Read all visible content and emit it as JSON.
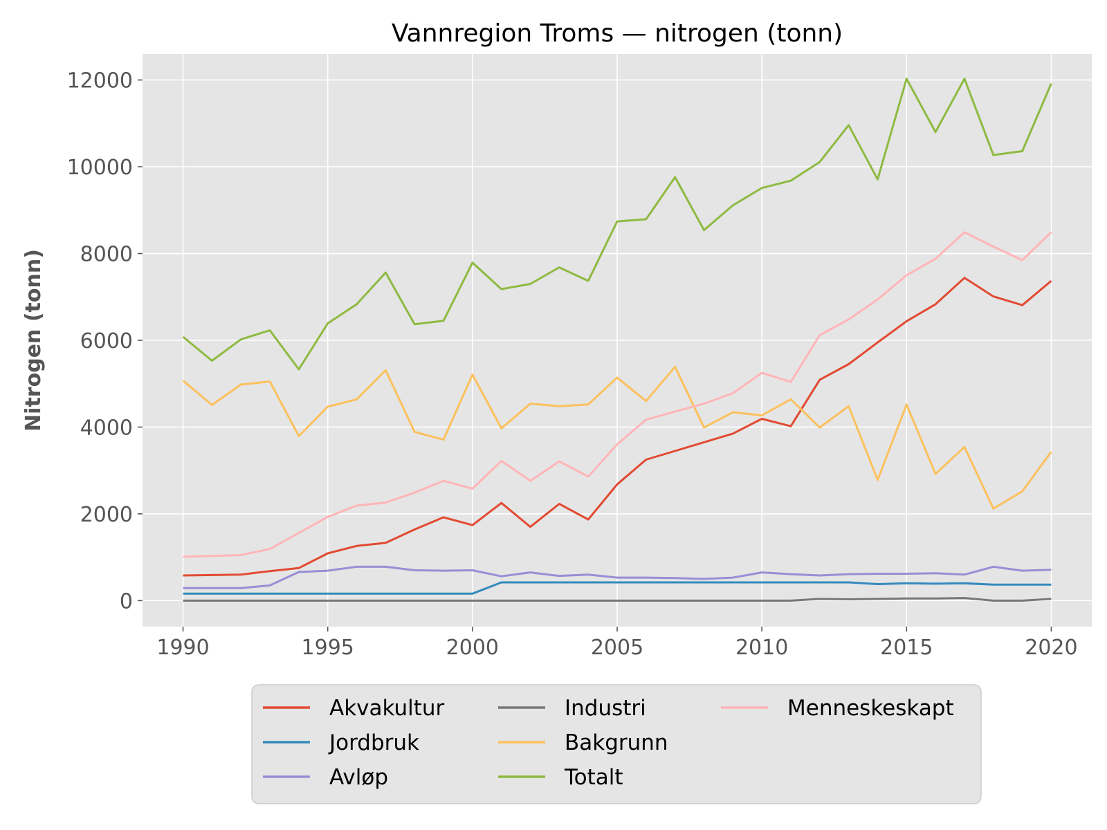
{
  "chart_data": {
    "type": "line",
    "title": "Vannregion Troms — nitrogen (tonn)",
    "xlabel": "",
    "ylabel": "Nitrogen (tonn)",
    "xlim": [
      1988.6,
      2021.4
    ],
    "ylim": [
      -600,
      12600
    ],
    "xticks": [
      1990,
      1995,
      2000,
      2005,
      2010,
      2015,
      2020
    ],
    "yticks": [
      0,
      2000,
      4000,
      6000,
      8000,
      10000,
      12000
    ],
    "grid": true,
    "legend_position": "below",
    "x": [
      1990,
      1991,
      1992,
      1993,
      1994,
      1995,
      1996,
      1997,
      1998,
      1999,
      2000,
      2001,
      2002,
      2003,
      2004,
      2005,
      2006,
      2007,
      2008,
      2009,
      2010,
      2011,
      2012,
      2013,
      2014,
      2015,
      2016,
      2017,
      2018,
      2019,
      2020
    ],
    "series": [
      {
        "name": "Akvakultur",
        "color": "#E24A33",
        "values": [
          580,
          590,
          600,
          680,
          750,
          1090,
          1260,
          1330,
          1640,
          1920,
          1740,
          2250,
          1700,
          2230,
          1870,
          2680,
          3250,
          3450,
          3650,
          3850,
          4190,
          4020,
          5090,
          5450,
          5950,
          6440,
          6830,
          7440,
          7010,
          6810,
          7370
        ]
      },
      {
        "name": "Jordbruk",
        "color": "#348ABD",
        "values": [
          160,
          160,
          160,
          160,
          160,
          160,
          160,
          160,
          160,
          160,
          160,
          420,
          420,
          420,
          420,
          420,
          420,
          420,
          420,
          420,
          420,
          420,
          420,
          420,
          380,
          400,
          390,
          400,
          370,
          370,
          370
        ]
      },
      {
        "name": "Avløp",
        "color": "#988ED5",
        "values": [
          290,
          290,
          290,
          350,
          660,
          690,
          780,
          780,
          700,
          690,
          700,
          560,
          650,
          570,
          600,
          530,
          530,
          520,
          500,
          530,
          650,
          610,
          580,
          610,
          620,
          620,
          630,
          600,
          780,
          690,
          710
        ]
      },
      {
        "name": "Industri",
        "color": "#777777",
        "values": [
          0,
          0,
          0,
          0,
          0,
          0,
          0,
          0,
          0,
          0,
          0,
          0,
          0,
          0,
          0,
          0,
          0,
          0,
          0,
          0,
          0,
          0,
          40,
          30,
          40,
          50,
          50,
          60,
          0,
          0,
          40
        ]
      },
      {
        "name": "Bakgrunn",
        "color": "#FBC15E",
        "values": [
          5070,
          4510,
          4980,
          5050,
          3790,
          4470,
          4640,
          5310,
          3890,
          3710,
          5210,
          3970,
          4540,
          4480,
          4520,
          5140,
          4600,
          5390,
          3990,
          4340,
          4270,
          4640,
          3990,
          4480,
          2780,
          4520,
          2920,
          3540,
          2120,
          2520,
          3430
        ]
      },
      {
        "name": "Totalt",
        "color": "#8EBA42",
        "values": [
          6080,
          5530,
          6020,
          6230,
          5330,
          6390,
          6830,
          7560,
          6370,
          6450,
          7790,
          7180,
          7300,
          7680,
          7370,
          8740,
          8790,
          9760,
          8540,
          9110,
          9510,
          9680,
          10110,
          10960,
          9710,
          12030,
          10800,
          12030,
          10270,
          10360,
          11920
        ]
      },
      {
        "name": "Menneskeskapt",
        "color": "#FFB5B8",
        "values": [
          1010,
          1030,
          1050,
          1190,
          1560,
          1930,
          2190,
          2260,
          2490,
          2760,
          2580,
          3220,
          2760,
          3210,
          2860,
          3600,
          4170,
          4360,
          4540,
          4780,
          5250,
          5040,
          6120,
          6480,
          6940,
          7500,
          7880,
          8490,
          8160,
          7850,
          8490
        ]
      }
    ]
  }
}
